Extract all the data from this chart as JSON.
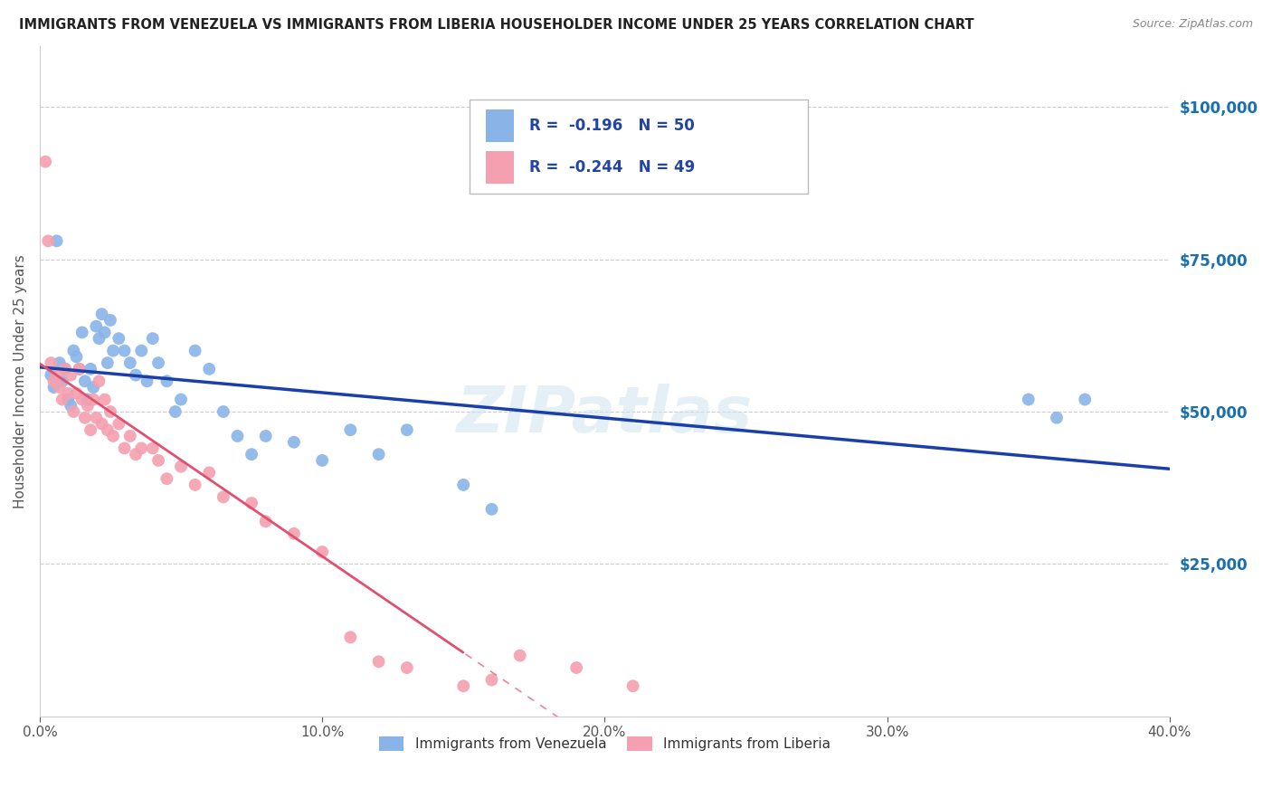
{
  "title": "IMMIGRANTS FROM VENEZUELA VS IMMIGRANTS FROM LIBERIA HOUSEHOLDER INCOME UNDER 25 YEARS CORRELATION CHART",
  "source": "Source: ZipAtlas.com",
  "ylabel": "Householder Income Under 25 years",
  "xlim": [
    0.0,
    0.4
  ],
  "ylim": [
    0,
    110000
  ],
  "xtick_labels": [
    "0.0%",
    "10.0%",
    "20.0%",
    "30.0%",
    "40.0%"
  ],
  "xtick_values": [
    0.0,
    0.1,
    0.2,
    0.3,
    0.4
  ],
  "ytick_labels": [
    "$25,000",
    "$50,000",
    "$75,000",
    "$100,000"
  ],
  "ytick_values": [
    25000,
    50000,
    75000,
    100000
  ],
  "watermark": "ZIPatlas",
  "legend_blue_r": "R =  -0.196",
  "legend_blue_n": "N = 50",
  "legend_pink_r": "R =  -0.244",
  "legend_pink_n": "N = 49",
  "legend_blue_label": "Immigrants from Venezuela",
  "legend_pink_label": "Immigrants from Liberia",
  "blue_color": "#8ab4e8",
  "pink_color": "#f4a0b0",
  "blue_line_color": "#1a3faa",
  "pink_line_color": "#e05070",
  "blue_scatter_x": [
    0.004,
    0.005,
    0.006,
    0.007,
    0.008,
    0.009,
    0.01,
    0.011,
    0.012,
    0.013,
    0.014,
    0.015,
    0.016,
    0.017,
    0.018,
    0.019,
    0.02,
    0.021,
    0.022,
    0.023,
    0.024,
    0.025,
    0.026,
    0.028,
    0.03,
    0.032,
    0.034,
    0.036,
    0.038,
    0.04,
    0.042,
    0.045,
    0.048,
    0.05,
    0.055,
    0.06,
    0.065,
    0.07,
    0.075,
    0.08,
    0.09,
    0.1,
    0.11,
    0.12,
    0.13,
    0.15,
    0.16,
    0.35,
    0.36,
    0.37
  ],
  "blue_scatter_y": [
    56000,
    54000,
    78000,
    58000,
    55000,
    57000,
    52000,
    51000,
    60000,
    59000,
    57000,
    63000,
    55000,
    52000,
    57000,
    54000,
    64000,
    62000,
    66000,
    63000,
    58000,
    65000,
    60000,
    62000,
    60000,
    58000,
    56000,
    60000,
    55000,
    62000,
    58000,
    55000,
    50000,
    52000,
    60000,
    57000,
    50000,
    46000,
    43000,
    46000,
    45000,
    42000,
    47000,
    43000,
    47000,
    38000,
    34000,
    52000,
    49000,
    52000
  ],
  "pink_scatter_x": [
    0.002,
    0.003,
    0.004,
    0.005,
    0.006,
    0.007,
    0.008,
    0.009,
    0.01,
    0.011,
    0.012,
    0.013,
    0.014,
    0.015,
    0.016,
    0.017,
    0.018,
    0.019,
    0.02,
    0.021,
    0.022,
    0.023,
    0.024,
    0.025,
    0.026,
    0.028,
    0.03,
    0.032,
    0.034,
    0.036,
    0.04,
    0.042,
    0.045,
    0.05,
    0.055,
    0.06,
    0.065,
    0.075,
    0.08,
    0.09,
    0.1,
    0.11,
    0.12,
    0.13,
    0.15,
    0.16,
    0.17,
    0.19,
    0.21
  ],
  "pink_scatter_y": [
    91000,
    78000,
    58000,
    55000,
    56000,
    54000,
    52000,
    57000,
    53000,
    56000,
    50000,
    53000,
    57000,
    52000,
    49000,
    51000,
    47000,
    52000,
    49000,
    55000,
    48000,
    52000,
    47000,
    50000,
    46000,
    48000,
    44000,
    46000,
    43000,
    44000,
    44000,
    42000,
    39000,
    41000,
    38000,
    40000,
    36000,
    35000,
    32000,
    30000,
    27000,
    13000,
    9000,
    8000,
    5000,
    6000,
    10000,
    8000,
    5000
  ]
}
